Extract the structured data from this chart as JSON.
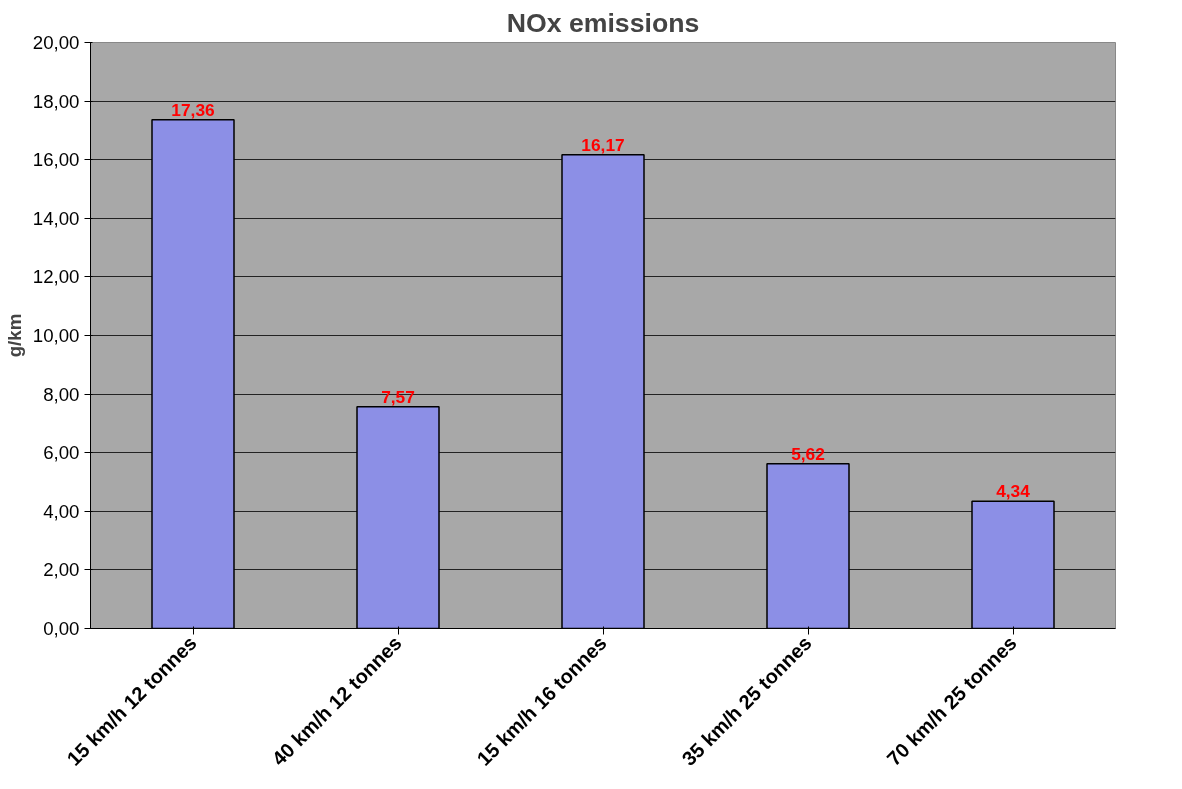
{
  "chart_data": {
    "type": "bar",
    "title": "NOx emissions",
    "ylabel": "g/km",
    "categories": [
      "15 km/h 12 tonnes",
      "40 km/h 12 tonnes",
      "15 km/h 16 tonnes",
      "35 km/h 25 tonnes",
      "70 km/h 25 tonnes"
    ],
    "values": [
      17.36,
      7.57,
      16.17,
      5.62,
      4.34
    ],
    "value_labels": [
      "17,36",
      "7,57",
      "16,17",
      "5,62",
      "4,34"
    ],
    "color": "#8c8fe6",
    "ylim": [
      0,
      20
    ],
    "yticks": [
      {
        "value": 0,
        "label": "0,00"
      },
      {
        "value": 2,
        "label": "2,00"
      },
      {
        "value": 4,
        "label": "4,00"
      },
      {
        "value": 6,
        "label": "6,00"
      },
      {
        "value": 8,
        "label": "8,00"
      },
      {
        "value": 10,
        "label": "10,00"
      },
      {
        "value": 12,
        "label": "12,00"
      },
      {
        "value": 14,
        "label": "14,00"
      },
      {
        "value": 16,
        "label": "16,00"
      },
      {
        "value": 18,
        "label": "18,00"
      },
      {
        "value": 20,
        "label": "20,00"
      }
    ],
    "grid": "y"
  }
}
